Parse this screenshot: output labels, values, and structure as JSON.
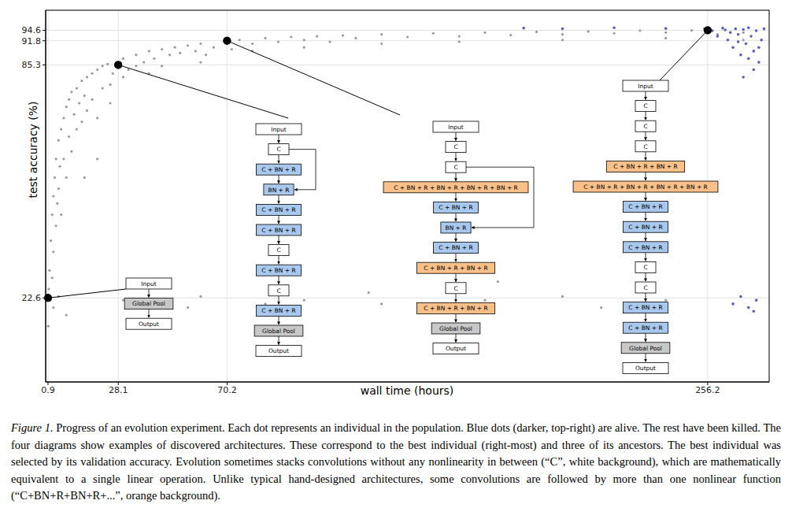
{
  "chart_data": {
    "type": "scatter",
    "xlabel": "wall time (hours)",
    "ylabel": "test accuracy (%)",
    "xlim": [
      0,
      280
    ],
    "ylim": [
      0,
      100
    ],
    "xticks": [
      0.9,
      28.1,
      70.2,
      256.2
    ],
    "yticks": [
      22.6,
      85.3,
      91.8,
      94.6
    ],
    "grid": true,
    "series": [
      {
        "color": "#9a9a9a",
        "marker": "circle",
        "x": [
          1,
          1.2,
          1.5,
          1.8,
          2,
          2.5,
          2.5,
          3,
          3,
          3.5,
          4,
          4,
          4.5,
          5,
          5,
          5.5,
          6,
          6,
          7,
          7,
          8,
          8,
          9,
          9,
          10,
          10,
          11,
          12,
          12,
          13,
          14,
          14,
          15,
          16,
          16,
          18,
          18,
          20,
          20,
          22,
          22,
          24,
          25,
          26,
          28,
          30,
          30,
          32,
          35,
          35,
          38,
          40,
          42,
          45,
          45,
          48,
          50,
          52,
          55,
          58,
          60,
          62,
          65,
          70,
          72,
          75,
          80,
          85,
          90,
          95,
          100,
          105,
          110,
          115,
          120,
          130,
          140,
          150,
          160,
          170,
          180,
          190,
          200,
          210,
          220,
          230,
          240,
          250,
          260,
          270,
          20,
          15,
          25,
          40,
          60,
          80,
          100,
          130,
          160,
          200,
          240,
          270,
          30,
          55,
          60,
          85,
          90,
          95,
          100,
          125,
          130,
          170,
          175,
          200,
          215,
          230,
          240,
          3,
          5,
          8
        ],
        "values": [
          15,
          25,
          30,
          22,
          38,
          45,
          28,
          50,
          35,
          55,
          60,
          42,
          48,
          65,
          52,
          58,
          68,
          45,
          71,
          60,
          74,
          55,
          76,
          66,
          78,
          62,
          72,
          79,
          68,
          75,
          81,
          70,
          77,
          82,
          73,
          83,
          76,
          84,
          71,
          85,
          79,
          85.5,
          80,
          83,
          86,
          87,
          82,
          84,
          88,
          85,
          86,
          89,
          87,
          89.5,
          85,
          88,
          90,
          88.5,
          90.5,
          89,
          91,
          88,
          90,
          91,
          89.5,
          92,
          91,
          92.5,
          91.5,
          92.8,
          92,
          93,
          91.5,
          93.2,
          92.5,
          93.5,
          92.8,
          93.8,
          93,
          94,
          93.3,
          94.2,
          93.5,
          94.3,
          93.8,
          94.5,
          94,
          94.6,
          93.5,
          94,
          60,
          55,
          75,
          83,
          86,
          89,
          90,
          91,
          91.5,
          92,
          92.5,
          92,
          22,
          20,
          23,
          21,
          25,
          19,
          22,
          24,
          21,
          22,
          27,
          23,
          20,
          25,
          22,
          20,
          23,
          18
        ]
      },
      {
        "color": "#5a5fb8",
        "marker": "circle",
        "x": [
          255,
          258,
          260,
          262,
          264,
          265,
          266,
          267,
          268,
          269,
          270,
          271,
          272,
          273,
          274,
          275,
          276,
          277,
          278,
          272,
          268,
          263,
          276,
          274,
          270,
          266,
          269,
          272,
          275,
          274,
          185,
          200,
          220,
          240
        ],
        "values": [
          95,
          94.5,
          93,
          95.2,
          92,
          94,
          90,
          95,
          93.5,
          88,
          94.8,
          91,
          95.3,
          93,
          89,
          94.5,
          86,
          92,
          95,
          87,
          91.5,
          94.7,
          90,
          84,
          82,
          21,
          23,
          20,
          22,
          19,
          95.2,
          95,
          95.3,
          95.1
        ]
      },
      {
        "color": "#000000",
        "marker": "circle",
        "x": [
          0.9,
          28.1,
          70.2,
          256.2
        ],
        "values": [
          22.6,
          85.3,
          91.8,
          94.6
        ]
      }
    ]
  },
  "diagrams": [
    {
      "nodes": [
        {
          "label": "Input",
          "color": "#ffffff"
        },
        {
          "label": "Global Pool",
          "color": "#c8c8c8"
        },
        {
          "label": "Output",
          "color": "#ffffff"
        }
      ]
    },
    {
      "nodes": [
        {
          "label": "Input",
          "color": "#ffffff"
        },
        {
          "label": "C",
          "color": "#ffffff"
        },
        {
          "label": "C + BN + R",
          "color": "#a8c8ee"
        },
        {
          "label": "BN + R",
          "color": "#a8c8ee"
        },
        {
          "label": "C + BN + R",
          "color": "#a8c8ee"
        },
        {
          "label": "C + BN + R",
          "color": "#a8c8ee"
        },
        {
          "label": "C",
          "color": "#ffffff"
        },
        {
          "label": "C + BN + R",
          "color": "#a8c8ee"
        },
        {
          "label": "C",
          "color": "#ffffff"
        },
        {
          "label": "C + BN + R",
          "color": "#a8c8ee"
        },
        {
          "label": "Global Pool",
          "color": "#c8c8c8"
        },
        {
          "label": "Output",
          "color": "#ffffff"
        }
      ]
    },
    {
      "nodes": [
        {
          "label": "Input",
          "color": "#ffffff"
        },
        {
          "label": "C",
          "color": "#ffffff"
        },
        {
          "label": "C",
          "color": "#ffffff"
        },
        {
          "label": "C + BN + R + BN + R + BN + R + BN + R",
          "color": "#f9c089"
        },
        {
          "label": "C + BN + R",
          "color": "#a8c8ee"
        },
        {
          "label": "BN + R",
          "color": "#a8c8ee"
        },
        {
          "label": "C + BN + R",
          "color": "#a8c8ee"
        },
        {
          "label": "C + BN + R + BN + R",
          "color": "#f9c089"
        },
        {
          "label": "C",
          "color": "#ffffff"
        },
        {
          "label": "C + BN + R + BN + R",
          "color": "#f9c089"
        },
        {
          "label": "Global Pool",
          "color": "#c8c8c8"
        },
        {
          "label": "Output",
          "color": "#ffffff"
        }
      ]
    },
    {
      "nodes": [
        {
          "label": "Input",
          "color": "#ffffff"
        },
        {
          "label": "C",
          "color": "#ffffff"
        },
        {
          "label": "C",
          "color": "#ffffff"
        },
        {
          "label": "C",
          "color": "#ffffff"
        },
        {
          "label": "C + BN + R + BN + R",
          "color": "#f9c089"
        },
        {
          "label": "C + BN + R + BN + R + BN + R + BN + R",
          "color": "#f9c089"
        },
        {
          "label": "C + BN + R",
          "color": "#a8c8ee"
        },
        {
          "label": "C + BN + R",
          "color": "#a8c8ee"
        },
        {
          "label": "C + BN + R",
          "color": "#a8c8ee"
        },
        {
          "label": "C",
          "color": "#ffffff"
        },
        {
          "label": "C",
          "color": "#ffffff"
        },
        {
          "label": "C + BN + R",
          "color": "#a8c8ee"
        },
        {
          "label": "C + BN + R",
          "color": "#a8c8ee"
        },
        {
          "label": "Global Pool",
          "color": "#c8c8c8"
        },
        {
          "label": "Output",
          "color": "#ffffff"
        }
      ]
    }
  ],
  "caption": {
    "label": "Figure 1.",
    "text": "Progress of an evolution experiment. Each dot represents an individual in the population. Blue dots (darker, top-right) are alive. The rest have been killed. The four diagrams show examples of discovered architectures. These correspond to the best individual (right-most) and three of its ancestors. The best individual was selected by its validation accuracy. Evolution sometimes stacks convolutions without any nonlinearity in between (“C”, white background), which are mathematically equivalent to a single linear operation. Unlike typical hand-designed architectures, some convolutions are followed by more than one nonlinear function (“C+BN+R+BN+R+...”, orange background)."
  }
}
